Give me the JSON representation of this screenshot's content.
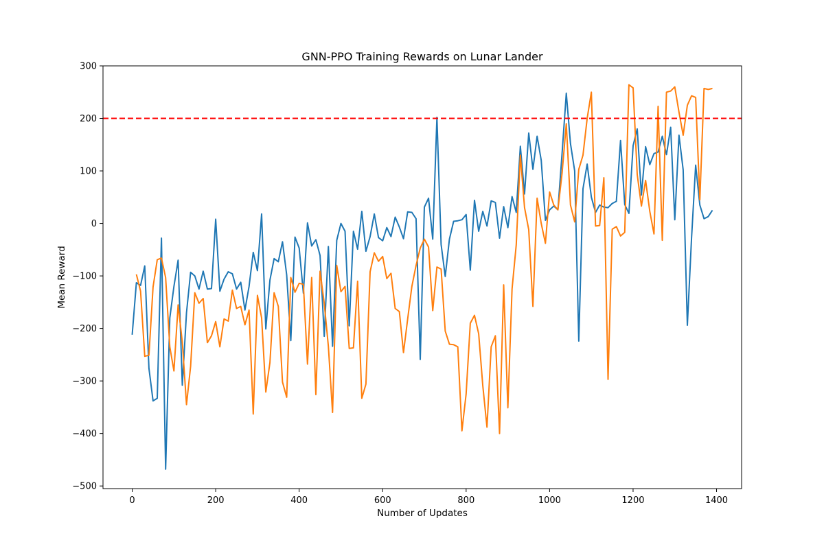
{
  "chart_data": {
    "type": "line",
    "title": "GNN-PPO Training Rewards on Lunar Lander",
    "xlabel": "Number of Updates",
    "ylabel": "Mean Reward",
    "xlim": [
      -70,
      1460
    ],
    "ylim": [
      -505,
      300
    ],
    "xticks": [
      0,
      200,
      400,
      600,
      800,
      1000,
      1200,
      1400
    ],
    "yticks": [
      -500,
      -400,
      -300,
      -200,
      -100,
      0,
      100,
      200,
      300
    ],
    "grid": false,
    "legend": "none",
    "reference_lines": [
      {
        "axis": "y",
        "value": 200,
        "style": "dashed",
        "color": "#ff0000"
      }
    ],
    "series": [
      {
        "color": "#1f77b4",
        "x": [
          0,
          10,
          20,
          30,
          40,
          50,
          60,
          70,
          80,
          90,
          100,
          110,
          120,
          130,
          140,
          150,
          160,
          170,
          180,
          190,
          200,
          210,
          220,
          230,
          240,
          250,
          260,
          270,
          280,
          290,
          300,
          310,
          320,
          330,
          340,
          350,
          360,
          370,
          380,
          390,
          400,
          410,
          420,
          430,
          440,
          450,
          460,
          470,
          480,
          490,
          500,
          510,
          520,
          530,
          540,
          550,
          560,
          570,
          580,
          590,
          600,
          610,
          620,
          630,
          640,
          650,
          660,
          670,
          680,
          690,
          700,
          710,
          720,
          730,
          740,
          750,
          760,
          770,
          780,
          790,
          800,
          810,
          820,
          830,
          840,
          850,
          860,
          870,
          880,
          890,
          900,
          910,
          920,
          930,
          940,
          950,
          960,
          970,
          980,
          990,
          1000,
          1010,
          1020,
          1030,
          1040,
          1050,
          1060,
          1070,
          1080,
          1090,
          1100,
          1110,
          1120,
          1130,
          1140,
          1150,
          1160,
          1170,
          1180,
          1190,
          1200,
          1210,
          1220,
          1230,
          1240,
          1250,
          1260,
          1270,
          1280,
          1290,
          1300,
          1310,
          1320,
          1330,
          1340,
          1350,
          1360,
          1370,
          1380,
          1390
        ],
        "y": [
          -212,
          -113,
          -118,
          -81,
          -276,
          -338,
          -333,
          -28,
          -468,
          -180,
          -120,
          -70,
          -308,
          -170,
          -93,
          -100,
          -125,
          -91,
          -125,
          -124,
          8,
          -129,
          -106,
          -92,
          -96,
          -125,
          -112,
          -165,
          -120,
          -55,
          -90,
          18,
          -201,
          -108,
          -67,
          -73,
          -35,
          -98,
          -223,
          -26,
          -47,
          -133,
          1,
          -43,
          -31,
          -61,
          -215,
          -44,
          -234,
          -32,
          0,
          -15,
          -195,
          -15,
          -49,
          23,
          -53,
          -25,
          18,
          -27,
          -33,
          -8,
          -25,
          12,
          -7,
          -29,
          22,
          21,
          9,
          -259,
          31,
          48,
          -30,
          202,
          -40,
          -101,
          -30,
          4,
          5,
          7,
          17,
          -89,
          44,
          -15,
          23,
          -5,
          43,
          40,
          -28,
          32,
          -8,
          51,
          21,
          147,
          56,
          172,
          103,
          166,
          120,
          6,
          26,
          33,
          26,
          134,
          248,
          152,
          100,
          -224,
          66,
          113,
          50,
          21,
          35,
          31,
          30,
          38,
          42,
          158,
          36,
          19,
          148,
          180,
          54,
          146,
          112,
          133,
          136,
          166,
          131,
          183,
          7,
          168,
          102,
          -194,
          -28,
          111,
          35,
          9,
          13,
          25
        ]
      },
      {
        "color": "#ff7f0e",
        "x": [
          10,
          20,
          30,
          40,
          50,
          60,
          70,
          80,
          90,
          100,
          110,
          120,
          130,
          140,
          150,
          160,
          170,
          180,
          190,
          200,
          210,
          220,
          230,
          240,
          250,
          260,
          270,
          280,
          290,
          300,
          310,
          320,
          330,
          340,
          350,
          360,
          370,
          380,
          390,
          400,
          410,
          420,
          430,
          440,
          450,
          460,
          470,
          480,
          490,
          500,
          510,
          520,
          530,
          540,
          550,
          560,
          570,
          580,
          590,
          600,
          610,
          620,
          630,
          640,
          650,
          660,
          670,
          680,
          690,
          700,
          710,
          720,
          730,
          740,
          750,
          760,
          770,
          780,
          790,
          800,
          810,
          820,
          830,
          840,
          850,
          860,
          870,
          880,
          890,
          900,
          910,
          920,
          930,
          940,
          950,
          960,
          970,
          980,
          990,
          1000,
          1010,
          1020,
          1030,
          1040,
          1050,
          1060,
          1070,
          1080,
          1090,
          1100,
          1110,
          1120,
          1130,
          1140,
          1150,
          1160,
          1170,
          1180,
          1190,
          1200,
          1210,
          1220,
          1230,
          1240,
          1250,
          1260,
          1270,
          1280,
          1290,
          1300,
          1310,
          1320,
          1330,
          1340,
          1350,
          1360,
          1370,
          1380,
          1390
        ],
        "y": [
          -97,
          -129,
          -253,
          -251,
          -121,
          -69,
          -66,
          -103,
          -235,
          -281,
          -155,
          -226,
          -345,
          -272,
          -132,
          -152,
          -143,
          -227,
          -214,
          -187,
          -235,
          -182,
          -186,
          -127,
          -162,
          -158,
          -193,
          -165,
          -363,
          -137,
          -180,
          -321,
          -265,
          -132,
          -158,
          -302,
          -331,
          -103,
          -131,
          -114,
          -116,
          -268,
          -103,
          -326,
          -91,
          -152,
          -234,
          -360,
          -80,
          -130,
          -120,
          -238,
          -237,
          -110,
          -333,
          -306,
          -92,
          -56,
          -72,
          -63,
          -105,
          -95,
          -162,
          -168,
          -246,
          -182,
          -120,
          -80,
          -47,
          -30,
          -45,
          -166,
          -83,
          -87,
          -205,
          -230,
          -231,
          -235,
          -395,
          -325,
          -190,
          -175,
          -210,
          -309,
          -388,
          -235,
          -214,
          -400,
          -117,
          -351,
          -125,
          -41,
          130,
          30,
          -12,
          -158,
          48,
          0,
          -38,
          60,
          35,
          26,
          96,
          190,
          35,
          3,
          103,
          130,
          200,
          250,
          -5,
          -4,
          87,
          -297,
          -11,
          -6,
          -24,
          -17,
          264,
          258,
          93,
          33,
          82,
          23,
          -20,
          223,
          -32,
          250,
          252,
          260,
          212,
          168,
          225,
          243,
          240,
          45,
          257,
          255,
          257
        ]
      }
    ]
  }
}
